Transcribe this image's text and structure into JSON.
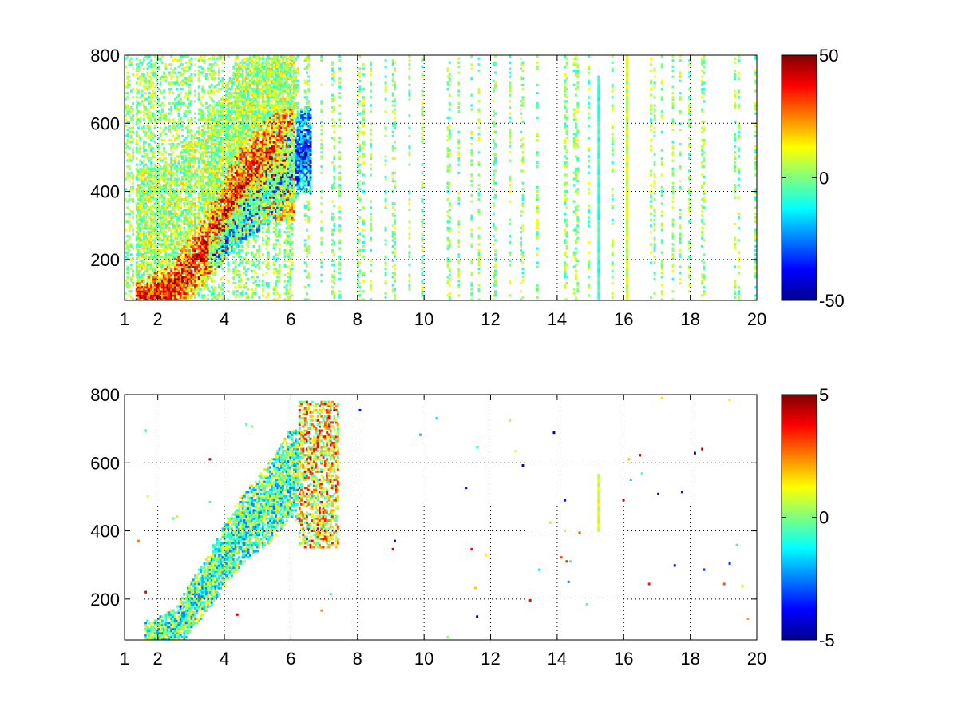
{
  "figure": {
    "background": "#ffffff",
    "colormap": "jet"
  },
  "chart_data": [
    {
      "type": "heatmap",
      "title": "",
      "xlabel": "",
      "ylabel": "",
      "xlim": [
        1,
        20
      ],
      "ylim": [
        80,
        800
      ],
      "xticks": [
        1,
        2,
        4,
        6,
        8,
        10,
        12,
        14,
        16,
        18,
        20
      ],
      "yticks": [
        200,
        400,
        600,
        800
      ],
      "grid": true,
      "colorbar": {
        "clim": [
          -50,
          50
        ],
        "ticks": [
          {
            "value": 50,
            "label": "50"
          },
          {
            "value": 0,
            "label": "0"
          },
          {
            "value": -50,
            "label": "-50"
          }
        ]
      },
      "features": [
        {
          "kind": "ridge",
          "x": [
            1.6,
            2.4,
            3.2,
            3.8,
            4.3,
            4.8,
            5.3,
            5.8
          ],
          "y": [
            85,
            110,
            200,
            290,
            380,
            430,
            460,
            480
          ],
          "value": 35
        },
        {
          "kind": "ridge",
          "x": [
            3.8,
            4.3,
            4.8,
            5.3,
            5.8,
            6.3
          ],
          "y": [
            230,
            300,
            350,
            400,
            450,
            520
          ],
          "value": -30
        },
        {
          "kind": "column",
          "x": 15.25,
          "y": [
            80,
            730
          ],
          "value": -8
        },
        {
          "kind": "column",
          "x": 16.1,
          "y": [
            80,
            800
          ],
          "value": 8
        }
      ]
    },
    {
      "type": "heatmap",
      "title": "",
      "xlabel": "",
      "ylabel": "",
      "xlim": [
        1,
        20
      ],
      "ylim": [
        80,
        800
      ],
      "xticks": [
        1,
        2,
        4,
        6,
        8,
        10,
        12,
        14,
        16,
        18,
        20
      ],
      "yticks": [
        200,
        400,
        600,
        800
      ],
      "grid": true,
      "colorbar": {
        "clim": [
          -5,
          5
        ],
        "ticks": [
          {
            "value": 5,
            "label": "5"
          },
          {
            "value": 0,
            "label": "0"
          },
          {
            "value": -5,
            "label": "-5"
          }
        ]
      },
      "features": [
        {
          "kind": "band",
          "x": [
            1.9,
            2.5,
            3.0,
            3.5,
            4.0,
            4.5,
            5.0,
            5.5,
            5.9
          ],
          "y": [
            90,
            110,
            180,
            250,
            330,
            400,
            450,
            500,
            560
          ],
          "value": -0.5
        },
        {
          "kind": "patch",
          "x": [
            6.2,
            7.4
          ],
          "y": [
            350,
            780
          ],
          "value": 1.5
        },
        {
          "kind": "column",
          "x": 15.25,
          "y": [
            400,
            565
          ],
          "value": 1
        }
      ]
    }
  ]
}
